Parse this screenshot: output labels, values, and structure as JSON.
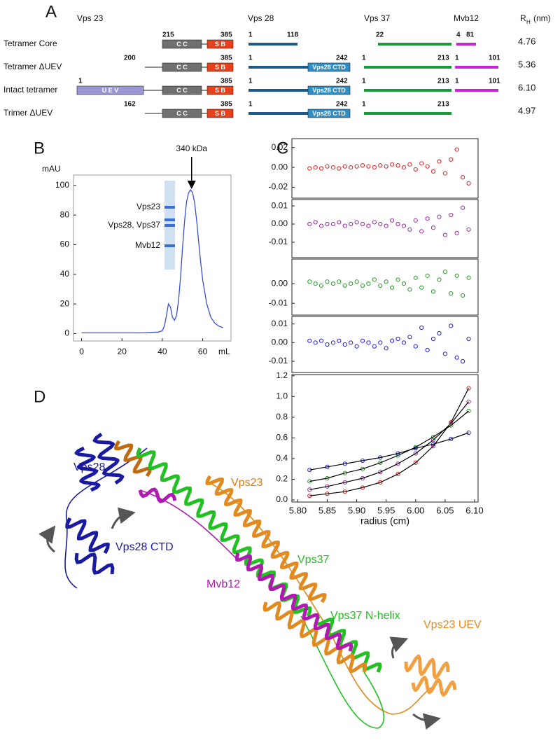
{
  "panel_labels": [
    "A",
    "B",
    "C",
    "D"
  ],
  "panel_a": {
    "headers": [
      "Vps 23",
      "Vps 28",
      "Vps 37",
      "Mvb12"
    ],
    "rh_header": {
      "symbol": "R",
      "subscript": "H",
      "unit": "(nm)"
    },
    "domain_labels": {
      "cc": "C C",
      "sb": "S B",
      "uev": "U E V",
      "ctd": "Vps28 CTD"
    },
    "rows": [
      {
        "label": "Tetramer Core",
        "rh": "4.76",
        "uev": false,
        "ctd": false,
        "vps23": [
          "215",
          "385"
        ],
        "vps28": [
          "1",
          "118"
        ],
        "vps37": [
          "22"
        ],
        "mvb12": [
          "4",
          "81"
        ]
      },
      {
        "label": "Tetramer ΔUEV",
        "rh": "5.36",
        "uev": false,
        "ctd": true,
        "vps23": [
          "200",
          "385"
        ],
        "vps28": [
          "1",
          "242"
        ],
        "vps37": [
          "1",
          "213"
        ],
        "mvb12": [
          "1",
          "101"
        ]
      },
      {
        "label": "Intact tetramer",
        "rh": "6.10",
        "uev": true,
        "ctd": true,
        "vps23": [
          "1",
          "385"
        ],
        "vps28": [
          "1",
          "242"
        ],
        "vps37": [
          "1",
          "213"
        ],
        "mvb12": [
          "1",
          "101"
        ]
      },
      {
        "label": "Trimer ΔUEV",
        "rh": "4.97",
        "uev": false,
        "ctd": true,
        "vps23": [
          "162",
          "385"
        ],
        "vps28": [
          "1",
          "242"
        ],
        "vps37": [
          "1",
          "213"
        ]
      }
    ]
  },
  "chart_data": [
    {
      "type": "line",
      "x_label": "mL",
      "y_label": "mAU",
      "xlim": [
        -4,
        74
      ],
      "ylim": [
        -5,
        107
      ],
      "xticks": [
        0,
        20,
        40,
        60
      ],
      "yticks": [
        0,
        20,
        40,
        60,
        80,
        100
      ],
      "annotation": {
        "text": "340 kDa",
        "x": 54.5
      },
      "inset_labels": [
        "Vps23",
        "Vps28, Vps37",
        "Mvb12"
      ],
      "series": [
        {
          "color": "#3a4fd0",
          "x": [
            0,
            10,
            20,
            30,
            38,
            40,
            41,
            42,
            43,
            44,
            45,
            46,
            47,
            48,
            49,
            50,
            51,
            52,
            53,
            54,
            55,
            56,
            57,
            58,
            59,
            60,
            62,
            64,
            66,
            68,
            70
          ],
          "values": [
            0.5,
            0.5,
            0.5,
            0.5,
            1,
            2,
            5,
            12,
            20,
            18,
            11,
            9,
            12,
            22,
            38,
            58,
            76,
            89,
            95,
            97,
            95,
            88,
            76,
            62,
            48,
            36,
            20,
            11,
            7,
            5,
            4
          ]
        }
      ]
    },
    {
      "type": "scatter",
      "xlim": [
        5.79,
        6.106
      ],
      "ylim": [
        -0.031,
        0.029
      ],
      "yticks": [
        0.02,
        {
          "value": 0,
          "label": "0.00"
        },
        -0.02
      ],
      "series": [
        {
          "color": "#e02020",
          "x": [
            5.82,
            5.83,
            5.84,
            5.85,
            5.86,
            5.87,
            5.88,
            5.89,
            5.9,
            5.91,
            5.92,
            5.93,
            5.94,
            5.95,
            5.96,
            5.97,
            5.98,
            5.99,
            6.0,
            6.01,
            6.02,
            6.03,
            6.04,
            6.05,
            6.06,
            6.07,
            6.08,
            6.09
          ],
          "values": [
            -0.001,
            0.0,
            -0.001,
            0.001,
            0.0,
            -0.001,
            0.001,
            0.0,
            0.001,
            0.002,
            0.001,
            0.0,
            0.002,
            0.001,
            0.003,
            0.002,
            0.0,
            0.003,
            -0.002,
            0.004,
            0.001,
            -0.004,
            0.006,
            -0.006,
            0.008,
            0.018,
            -0.01,
            -0.016
          ]
        }
      ]
    },
    {
      "type": "scatter",
      "xlim": [
        5.79,
        6.106
      ],
      "ylim": [
        -0.0185,
        0.0135
      ],
      "yticks": [
        0.01,
        {
          "value": 0,
          "label": "0.00"
        },
        -0.01
      ],
      "series": [
        {
          "color": "#9a2aa0",
          "x": [
            5.82,
            5.83,
            5.84,
            5.85,
            5.86,
            5.87,
            5.88,
            5.89,
            5.9,
            5.91,
            5.92,
            5.93,
            5.94,
            5.95,
            5.96,
            5.97,
            5.98,
            5.99,
            6.0,
            6.01,
            6.02,
            6.03,
            6.04,
            6.05,
            6.06,
            6.07,
            6.08,
            6.09
          ],
          "values": [
            0.0,
            0.001,
            -0.001,
            0.0,
            0.0,
            0.001,
            -0.001,
            0.0,
            0.001,
            0.0,
            -0.001,
            0.001,
            0.0,
            -0.001,
            0.002,
            0.0,
            -0.001,
            -0.003,
            0.002,
            -0.004,
            0.003,
            -0.002,
            0.004,
            -0.006,
            0.005,
            -0.005,
            0.009,
            -0.003
          ]
        }
      ]
    },
    {
      "type": "scatter",
      "xlim": [
        5.79,
        6.106
      ],
      "ylim": [
        -0.016,
        0.0125
      ],
      "yticks": [
        {
          "value": 0,
          "label": "0.00"
        },
        -0.01
      ],
      "series": [
        {
          "color": "#2a9a2a",
          "x": [
            5.82,
            5.83,
            5.84,
            5.85,
            5.86,
            5.87,
            5.88,
            5.89,
            5.9,
            5.91,
            5.92,
            5.93,
            5.94,
            5.95,
            5.96,
            5.97,
            5.98,
            5.99,
            6.0,
            6.01,
            6.02,
            6.03,
            6.04,
            6.05,
            6.06,
            6.07,
            6.08,
            6.09
          ],
          "values": [
            0.001,
            0.0,
            -0.001,
            0.001,
            0.0,
            0.001,
            -0.001,
            0.0,
            0.001,
            -0.001,
            0.0,
            0.002,
            -0.001,
            0.001,
            -0.002,
            0.002,
            0.0,
            -0.003,
            0.003,
            -0.002,
            0.004,
            -0.004,
            0.002,
            0.006,
            -0.005,
            0.004,
            -0.006,
            0.003
          ]
        }
      ]
    },
    {
      "type": "scatter",
      "xlim": [
        5.79,
        6.106
      ],
      "ylim": [
        -0.016,
        0.014
      ],
      "yticks": [
        0.01,
        {
          "value": 0,
          "label": "0.00"
        },
        -0.01
      ],
      "series": [
        {
          "color": "#2020d0",
          "x": [
            5.82,
            5.83,
            5.84,
            5.85,
            5.86,
            5.87,
            5.88,
            5.89,
            5.9,
            5.91,
            5.92,
            5.93,
            5.94,
            5.95,
            5.96,
            5.97,
            5.98,
            5.99,
            6.0,
            6.01,
            6.02,
            6.03,
            6.04,
            6.05,
            6.06,
            6.07,
            6.08,
            6.09
          ],
          "values": [
            0.001,
            0.0,
            0.001,
            -0.001,
            0.0,
            0.001,
            -0.001,
            0.0,
            -0.002,
            0.001,
            0.0,
            -0.002,
            0.0,
            -0.003,
            0.001,
            0.002,
            0.0,
            0.003,
            -0.002,
            0.008,
            -0.004,
            0.002,
            0.005,
            -0.006,
            0.009,
            -0.008,
            -0.01,
            0.002
          ]
        }
      ]
    },
    {
      "type": "scatter",
      "fit": true,
      "fit_color": "#000000",
      "x_label": "radius (cm)",
      "xlim": [
        5.79,
        6.106
      ],
      "ylim": [
        -0.02,
        1.212
      ],
      "xticks": [
        {
          "value": 5.8,
          "label": "5.80"
        },
        5.85,
        {
          "value": 5.9,
          "label": "5.90"
        },
        5.95,
        {
          "value": 6,
          "label": "6.00"
        },
        6.05,
        {
          "value": 6.1,
          "label": "6.10"
        }
      ],
      "yticks": [
        {
          "value": 0,
          "label": "0.0"
        },
        0.2,
        0.4,
        0.6,
        0.8,
        {
          "value": 1,
          "label": "1.0"
        },
        1.2
      ],
      "series": [
        {
          "color": "#e02020",
          "x": [
            5.82,
            5.85,
            5.88,
            5.91,
            5.94,
            5.97,
            6.0,
            6.03,
            6.06,
            6.09
          ],
          "values": [
            0.04,
            0.06,
            0.08,
            0.12,
            0.17,
            0.25,
            0.36,
            0.52,
            0.75,
            1.08
          ]
        },
        {
          "color": "#9a2aa0",
          "x": [
            5.82,
            5.85,
            5.88,
            5.91,
            5.94,
            5.97,
            6.0,
            6.03,
            6.06,
            6.09
          ],
          "values": [
            0.1,
            0.13,
            0.17,
            0.21,
            0.27,
            0.35,
            0.45,
            0.58,
            0.74,
            0.95
          ]
        },
        {
          "color": "#2a9a2a",
          "x": [
            5.82,
            5.85,
            5.88,
            5.91,
            5.94,
            5.97,
            6.0,
            6.03,
            6.06,
            6.09
          ],
          "values": [
            0.18,
            0.21,
            0.26,
            0.3,
            0.36,
            0.43,
            0.51,
            0.61,
            0.72,
            0.86
          ]
        },
        {
          "color": "#2020d0",
          "x": [
            5.82,
            5.85,
            5.88,
            5.91,
            5.94,
            5.97,
            6.0,
            6.03,
            6.06,
            6.09
          ],
          "values": [
            0.29,
            0.32,
            0.35,
            0.38,
            0.41,
            0.45,
            0.5,
            0.54,
            0.59,
            0.65
          ]
        }
      ]
    }
  ],
  "panel_d": {
    "labels": [
      {
        "text": "Vps28",
        "color": "#1a1aa0"
      },
      {
        "text": "Vps23",
        "color": "#e07a10"
      },
      {
        "text": "Vps28 CTD",
        "color": "#1a1aa0"
      },
      {
        "text": "Mvb12",
        "color": "#b01ab0"
      },
      {
        "text": "Vps37",
        "color": "#22c022"
      },
      {
        "text": "Vps37 N-helix",
        "color": "#22c022"
      },
      {
        "text": "Vps23 UEV",
        "color": "#e08a20"
      }
    ]
  }
}
